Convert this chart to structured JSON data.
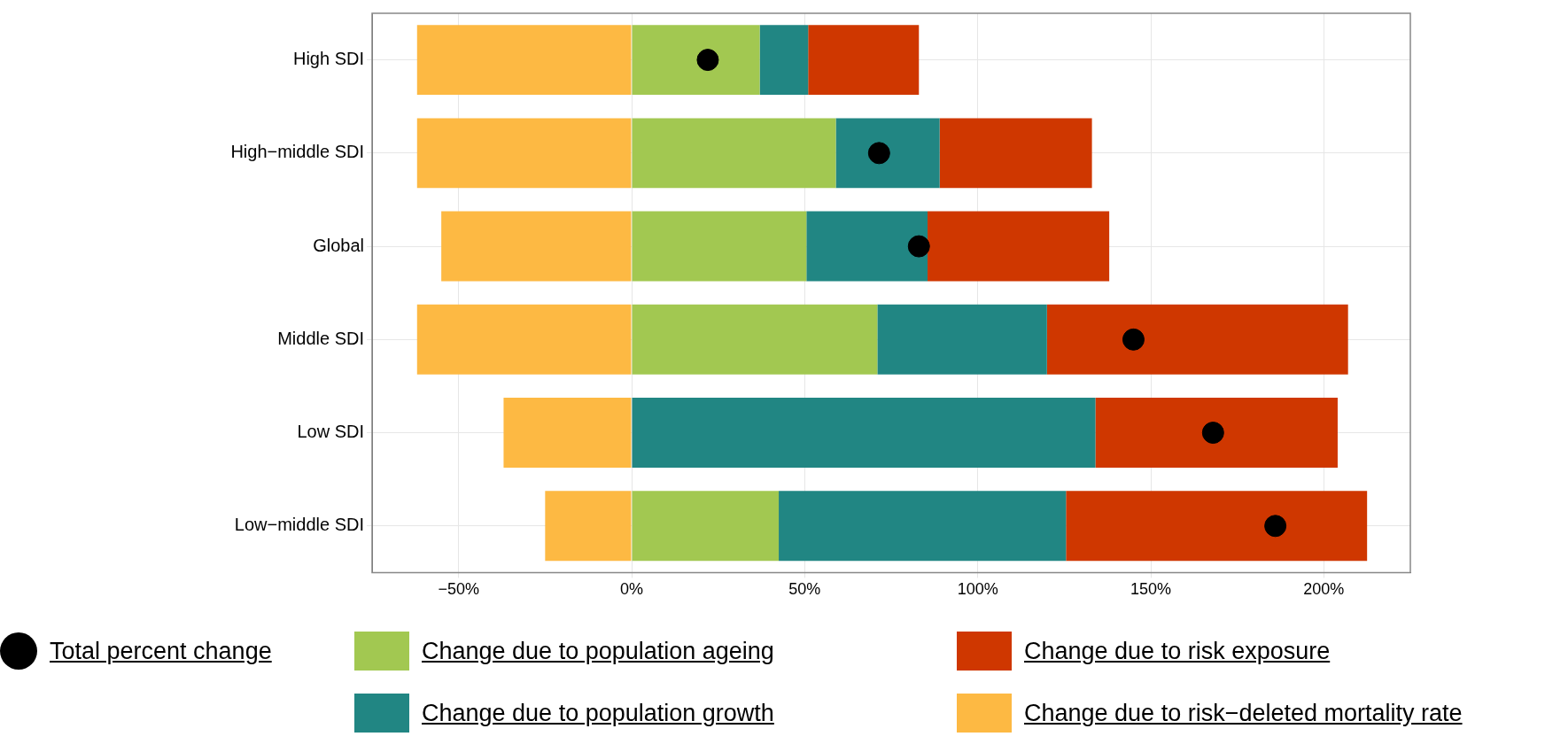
{
  "chart_data": {
    "type": "bar",
    "orientation": "horizontal",
    "stacked": true,
    "categories": [
      "High SDI",
      "High−middle SDI",
      "Global",
      "Middle SDI",
      "Low SDI",
      "Low−middle SDI"
    ],
    "series": [
      {
        "name": "Total percent change",
        "type": "scatter",
        "color": "#000000",
        "values": [
          22,
          71.5,
          83,
          145,
          168,
          186
        ]
      },
      {
        "name": "Change due to population ageing",
        "color": "#a2c851",
        "values": [
          37,
          59,
          50.5,
          71,
          0,
          42.5
        ]
      },
      {
        "name": "Change due to population growth",
        "color": "#218683",
        "values": [
          14,
          30,
          35,
          49,
          134,
          83
        ]
      },
      {
        "name": "Change due to risk exposure ",
        "color": "#cf3700",
        "values": [
          32,
          44,
          52.5,
          87,
          70,
          87
        ]
      },
      {
        "name": "Change due to risk−deleted mortality rate",
        "color": "#fdb943",
        "values": [
          -62,
          -62,
          -55,
          -62,
          -37,
          -25
        ]
      }
    ],
    "xlim": [
      -75,
      225
    ],
    "xticks": [
      {
        "value": -50,
        "label": "−50%"
      },
      {
        "value": 0,
        "label": "0%"
      },
      {
        "value": 50,
        "label": "50%"
      },
      {
        "value": 100,
        "label": "100%"
      },
      {
        "value": 150,
        "label": "150%"
      },
      {
        "value": 200,
        "label": "200%"
      }
    ],
    "grid": true,
    "legend": "bottom",
    "marker": "circle"
  }
}
